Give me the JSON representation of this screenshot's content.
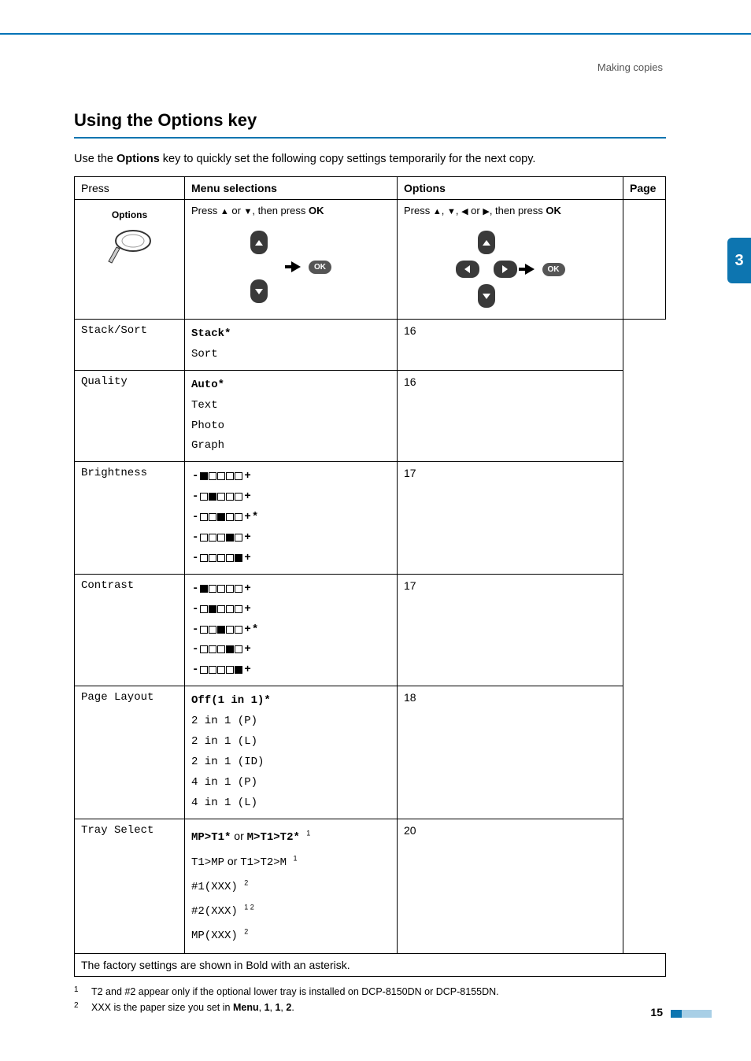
{
  "breadcrumb": "Making copies",
  "side_tab": "3",
  "page_number": "15",
  "title": "Using the Options key",
  "intro": {
    "pre": "Use the ",
    "bold": "Options",
    "post": " key to quickly set the following copy settings temporarily for the next copy."
  },
  "headers": {
    "press": "Press",
    "menu": "Menu selections",
    "options": "Options",
    "page": "Page"
  },
  "press_cell": {
    "caption": "Options"
  },
  "instructions": {
    "menu": {
      "pre": "Press ",
      "a": "▲",
      "or": " or ",
      "b": "▼",
      "post": ", then press ",
      "ok": "OK"
    },
    "options": {
      "pre": "Press ",
      "a": "▲",
      "c1": ", ",
      "b": "▼",
      "c2": ", ",
      "c": "◀",
      "or": " or ",
      "d": "▶",
      "post": ", then press ",
      "ok": "OK"
    }
  },
  "ok_label": "OK",
  "rows": [
    {
      "menu": "Stack/Sort",
      "page": "16",
      "options": [
        {
          "text": "Stack",
          "bold": true,
          "star": true
        },
        {
          "text": "Sort"
        }
      ]
    },
    {
      "menu": "Quality",
      "page": "16",
      "options": [
        {
          "text": "Auto",
          "bold": true,
          "star": true
        },
        {
          "text": "Text"
        },
        {
          "text": "Photo"
        },
        {
          "text": "Graph"
        }
      ]
    },
    {
      "menu": "Brightness",
      "page": "17",
      "levels": [
        {
          "filled": 0
        },
        {
          "filled": 1
        },
        {
          "filled": 2,
          "star": true
        },
        {
          "filled": 3
        },
        {
          "filled": 4
        }
      ]
    },
    {
      "menu": "Contrast",
      "page": "17",
      "levels": [
        {
          "filled": 0
        },
        {
          "filled": 1
        },
        {
          "filled": 2,
          "star": true
        },
        {
          "filled": 3
        },
        {
          "filled": 4
        }
      ]
    },
    {
      "menu": "Page Layout",
      "page": "18",
      "options": [
        {
          "text": "Off(1 in 1)",
          "bold": true,
          "star": true
        },
        {
          "text": "2 in 1 (P)"
        },
        {
          "text": "2 in 1 (L)"
        },
        {
          "text": "2 in 1 (ID)"
        },
        {
          "text": "4 in 1 (P)"
        },
        {
          "text": "4 in 1 (L)"
        }
      ]
    },
    {
      "menu": "Tray Select",
      "page": "20",
      "tray": [
        {
          "a": "MP>T1",
          "a_bold": true,
          "a_star": true,
          "or": " or ",
          "b": "M>T1>T2",
          "b_bold": true,
          "b_star": true,
          "sup": "1"
        },
        {
          "a": "T1>MP",
          "or": " or ",
          "b": "T1>T2>M",
          "sup": "1"
        },
        {
          "a": "#1(XXX)",
          "sup": "2"
        },
        {
          "a": "#2(XXX)",
          "sup": "1 2"
        },
        {
          "a": "MP(XXX)",
          "sup": "2"
        }
      ]
    }
  ],
  "footer_row": "The factory settings are shown in Bold with an asterisk.",
  "footnotes": [
    {
      "num": "1",
      "text_pre": "T2 and #2 appear only if the optional lower tray is installed on DCP-8150DN or DCP-8155DN.",
      "bold_parts": []
    },
    {
      "num": "2",
      "text_pre": "XXX is the paper size you set in ",
      "bold": "Menu",
      "text_post": ", ",
      "b2": "1",
      "c2": ", ",
      "b3": "1",
      "c3": ", ",
      "b4": "2",
      "c4": "."
    }
  ],
  "colors": {
    "accent": "#0d75b0",
    "accent_light": "#a8cfe6",
    "pill": "#3a3a3a"
  }
}
